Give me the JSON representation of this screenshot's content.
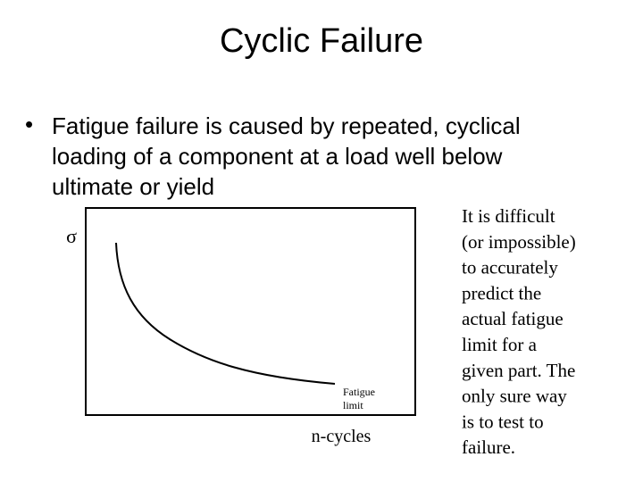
{
  "title": "Cyclic Failure",
  "bullet": {
    "marker": "•",
    "lines": [
      "Fatigue failure is caused by repeated, cyclical",
      "loading of a component at a load well below",
      "ultimate or yield"
    ]
  },
  "diagram": {
    "y_label": "σ",
    "x_label": "n-cycles",
    "annotation_lines": [
      "Fatigue",
      "limit"
    ]
  },
  "side_note": {
    "lines": [
      "It is difficult",
      "(or impossible)",
      "to accurately",
      "predict the",
      "actual fatigue",
      "limit for a",
      "given part. The",
      "only sure way",
      "is to test to",
      "failure."
    ]
  }
}
